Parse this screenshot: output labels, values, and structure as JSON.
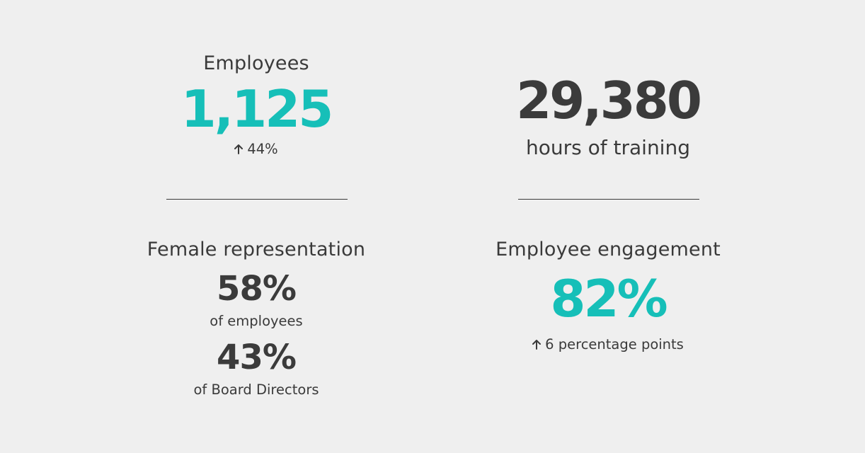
{
  "employees": {
    "label": "Employees",
    "value": "1,125",
    "change": "44%",
    "change_direction": "up",
    "accent_color": "#16bfb8"
  },
  "training": {
    "value": "29,380",
    "label": "hours of training"
  },
  "female_representation": {
    "label": "Female representation",
    "stat1_value": "58%",
    "stat1_label": "of employees",
    "stat2_value": "43%",
    "stat2_label": "of Board Directors"
  },
  "engagement": {
    "label": "Employee engagement",
    "value": "82%",
    "change": "6 percentage points",
    "change_direction": "up",
    "accent_color": "#16bfb8"
  },
  "icons": {
    "change_arrow": "arrow-up-icon"
  }
}
